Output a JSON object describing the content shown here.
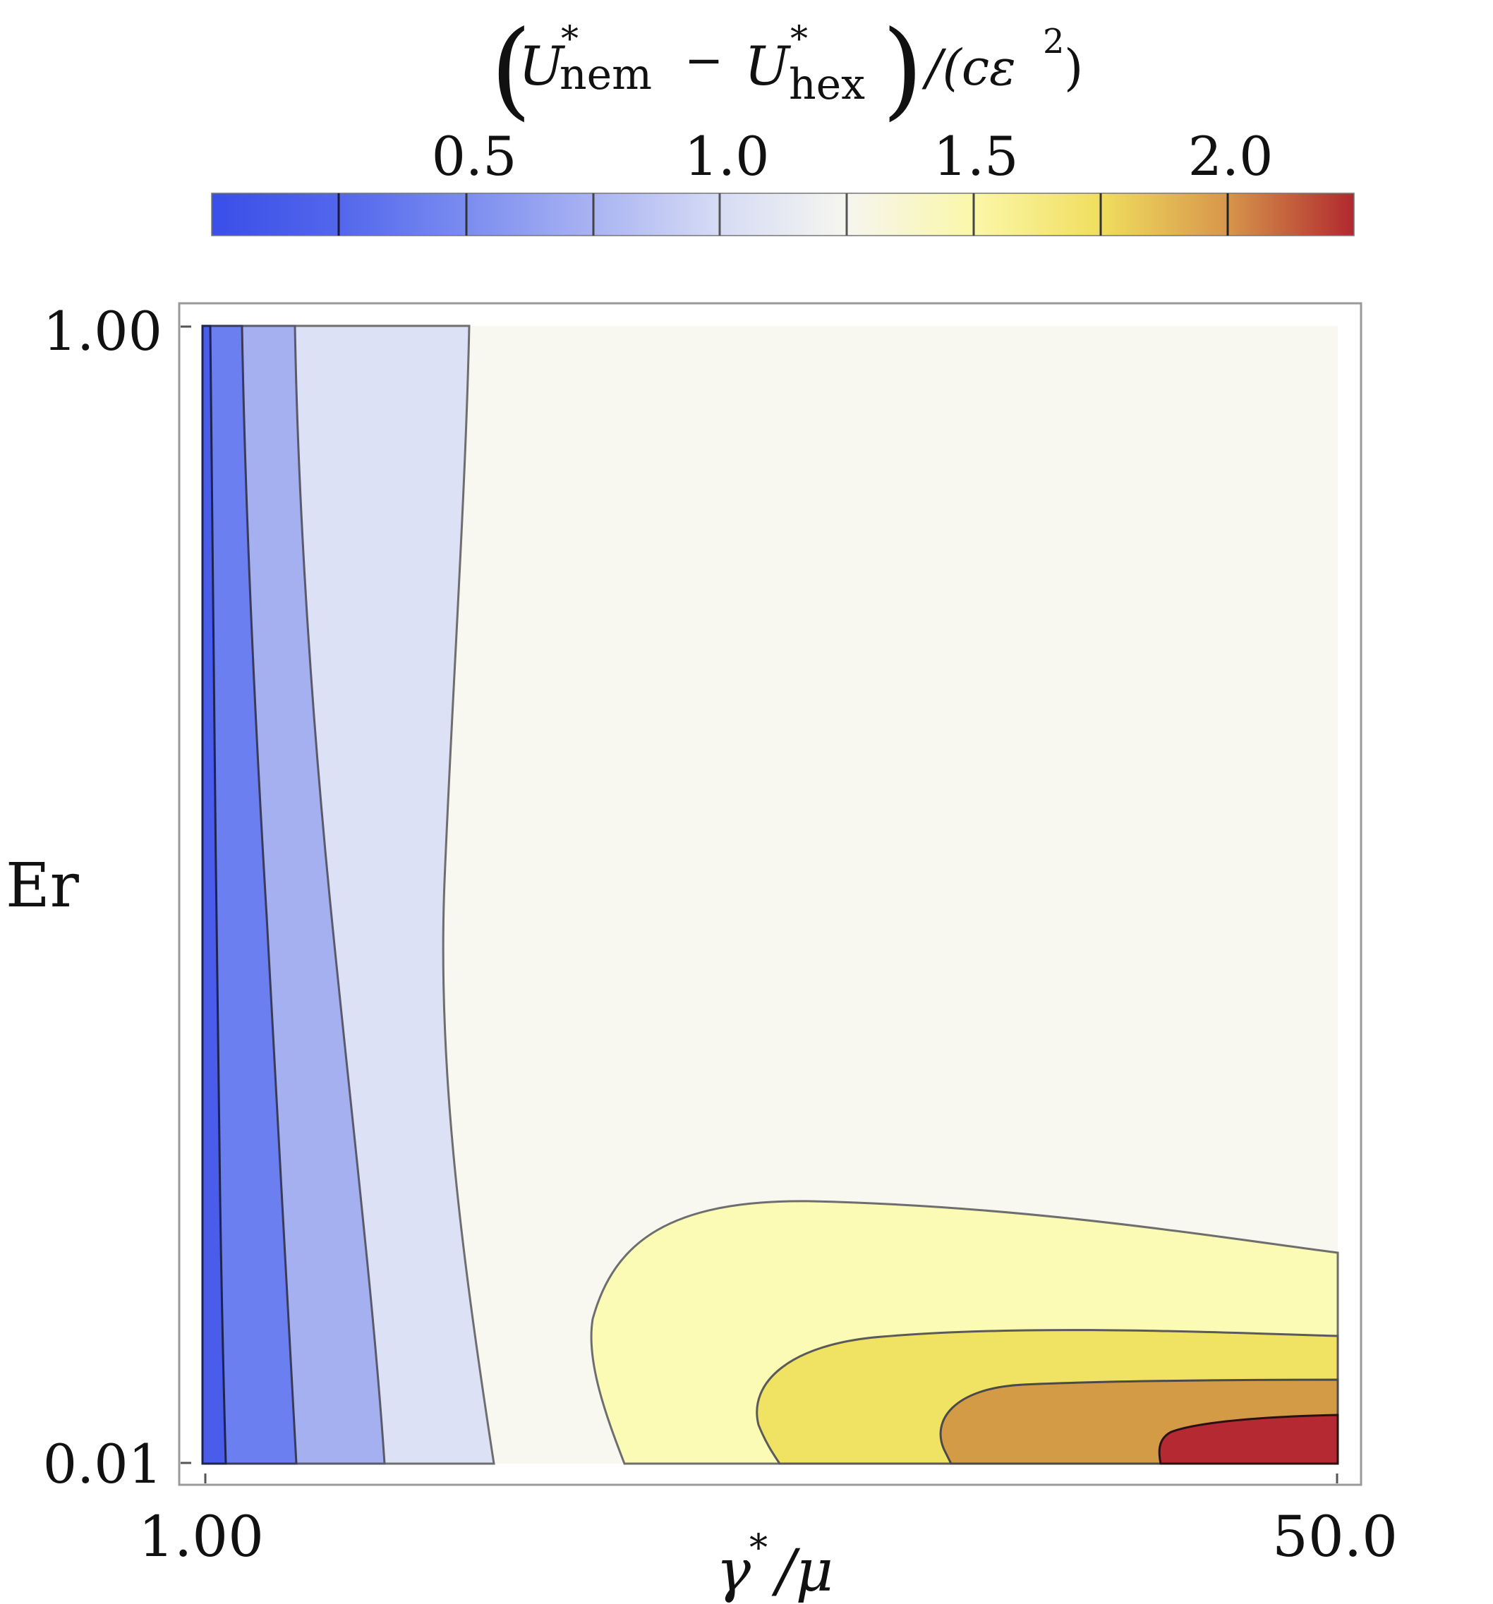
{
  "chart_data": {
    "type": "contour",
    "colorbar": {
      "title": {
        "paren_open": "(",
        "u1": "U",
        "star1": "*",
        "sub1": "nem",
        "minus": "−",
        "u2": "U",
        "star2": "*",
        "sub2": "hex",
        "paren_close": ")",
        "tail": "/(cε",
        "exp": "2",
        "tail_end": ")"
      },
      "ticks": [
        "0.5",
        "1.0",
        "1.5",
        "2.0"
      ],
      "range": [
        0.0,
        2.25
      ],
      "contour_levels": [
        0.25,
        0.5,
        0.75,
        1.0,
        1.25,
        1.5,
        1.75,
        2.0
      ],
      "color_stops": [
        {
          "value": 0.0,
          "color": "#3a4ee9"
        },
        {
          "value": 0.5,
          "color": "#7d8ef0"
        },
        {
          "value": 0.75,
          "color": "#b6c0f3"
        },
        {
          "value": 1.0,
          "color": "#f4f5f3"
        },
        {
          "value": 1.25,
          "color": "#fbf9b0"
        },
        {
          "value": 1.5,
          "color": "#f0e25c"
        },
        {
          "value": 1.75,
          "color": "#d89a4a"
        },
        {
          "value": 2.0,
          "color": "#c85a3a"
        },
        {
          "value": 2.25,
          "color": "#b1282f"
        }
      ]
    },
    "x_axis": {
      "label": "γ*/μ",
      "label_base": "γ",
      "label_sup": "*",
      "label_rest": "/μ",
      "range": [
        1.0,
        50.0
      ],
      "ticks": [
        "1.00",
        "50.0"
      ]
    },
    "y_axis": {
      "label": "Er",
      "range": [
        0.01,
        1.0
      ],
      "ticks": [
        "1.00",
        "0.01"
      ]
    },
    "regions": [
      {
        "name": "< 0.5",
        "color": "#4a5cea"
      },
      {
        "name": "0.5 – 0.75",
        "color": "#6c7ff0"
      },
      {
        "name": "0.75 – 1.0",
        "color": "#a5b0f0"
      },
      {
        "name": "1.0 – 1.25 (blue side)",
        "color": "#dde1f5"
      },
      {
        "name": "1.0 – 1.25",
        "color": "#f9f8f0"
      },
      {
        "name": "1.25 – 1.5",
        "color": "#fcfbb5"
      },
      {
        "name": "1.5 – 1.75",
        "color": "#f0e262"
      },
      {
        "name": "1.75 – 2.0",
        "color": "#d49b46"
      },
      {
        "name": "> 2.0",
        "color": "#b52a32"
      }
    ],
    "grid": false
  }
}
